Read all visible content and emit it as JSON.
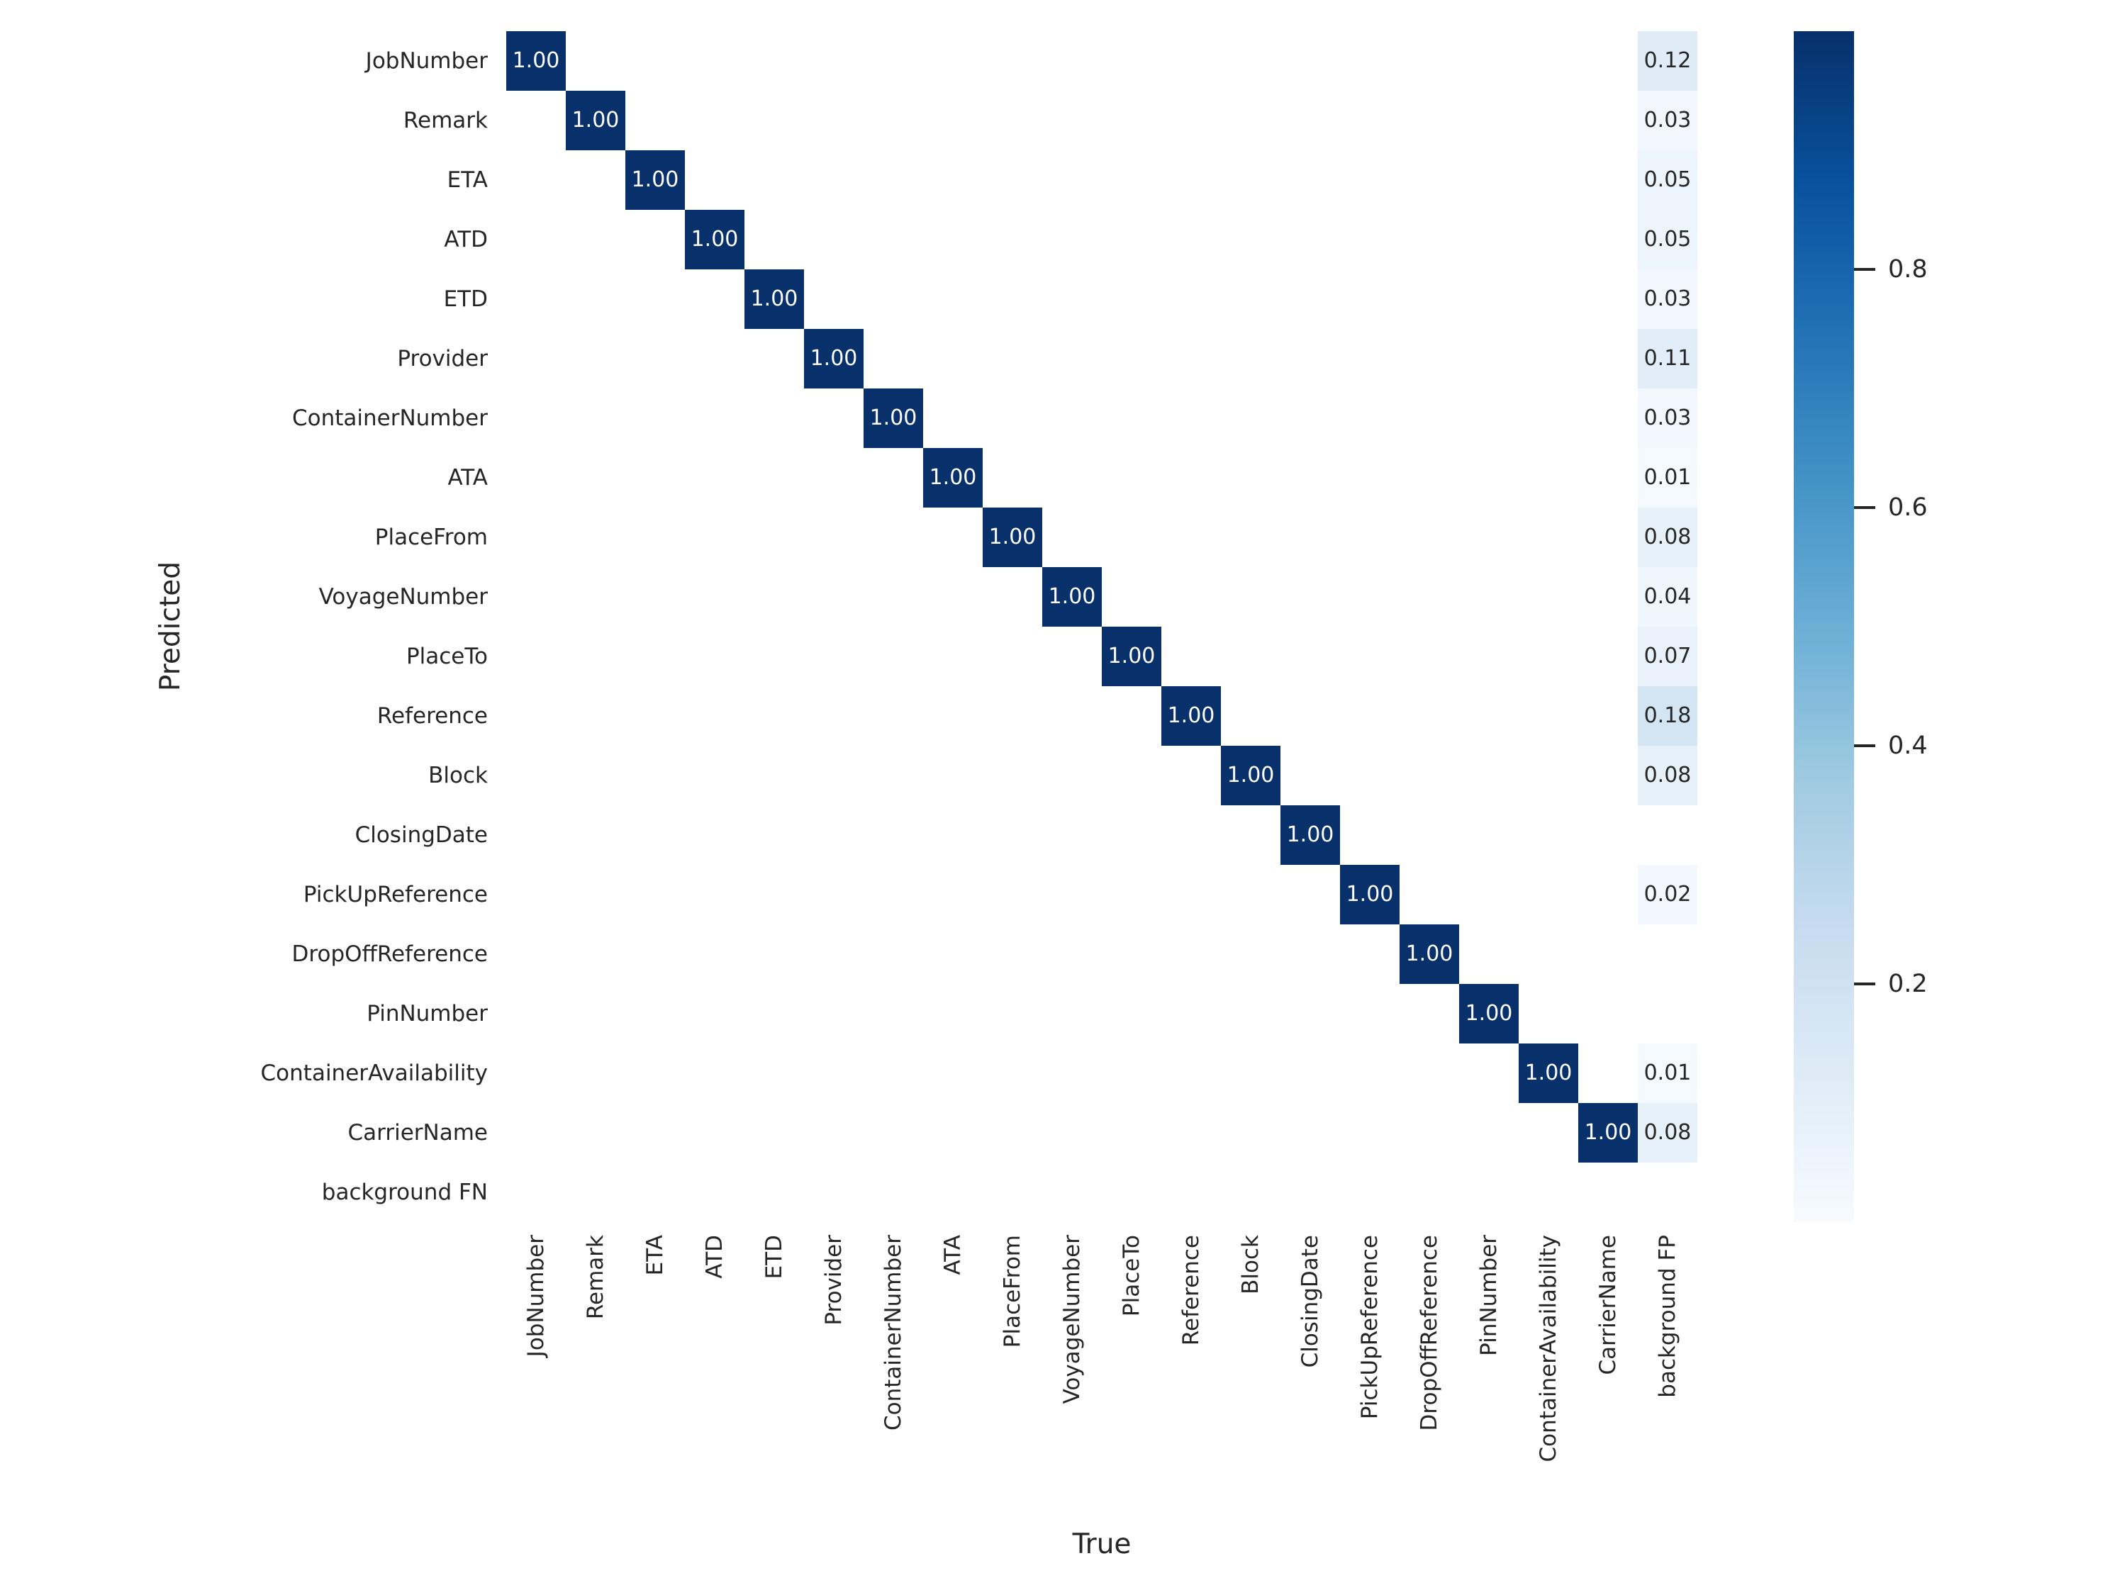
{
  "chart_data": {
    "type": "heatmap",
    "title": "",
    "xlabel": "True",
    "ylabel": "Predicted",
    "x_categories": [
      "JobNumber",
      "Remark",
      "ETA",
      "ATD",
      "ETD",
      "Provider",
      "ContainerNumber",
      "ATA",
      "PlaceFrom",
      "VoyageNumber",
      "PlaceTo",
      "Reference",
      "Block",
      "ClosingDate",
      "PickUpReference",
      "DropOffReference",
      "PinNumber",
      "ContainerAvailability",
      "CarrierName",
      "background FP"
    ],
    "y_categories": [
      "JobNumber",
      "Remark",
      "ETA",
      "ATD",
      "ETD",
      "Provider",
      "ContainerNumber",
      "ATA",
      "PlaceFrom",
      "VoyageNumber",
      "PlaceTo",
      "Reference",
      "Block",
      "ClosingDate",
      "PickUpReference",
      "DropOffReference",
      "PinNumber",
      "ContainerAvailability",
      "CarrierName",
      "background FN"
    ],
    "vmin": 0,
    "vmax": 1,
    "colormap": "Blues",
    "colormap_anchors": [
      "#f7fbff",
      "#deebf7",
      "#c6dbef",
      "#9ecae1",
      "#6baed6",
      "#4292c6",
      "#2171b5",
      "#08519c",
      "#08306b"
    ],
    "colorbar_ticks": [
      "0.8",
      "0.6",
      "0.4",
      "0.2"
    ],
    "annotation_color_light": "#ffffff",
    "annotation_color_dark": "#262626",
    "cells": [
      {
        "row": "JobNumber",
        "col": "JobNumber",
        "value": 1.0,
        "label": "1.00"
      },
      {
        "row": "Remark",
        "col": "Remark",
        "value": 1.0,
        "label": "1.00"
      },
      {
        "row": "ETA",
        "col": "ETA",
        "value": 1.0,
        "label": "1.00"
      },
      {
        "row": "ATD",
        "col": "ATD",
        "value": 1.0,
        "label": "1.00"
      },
      {
        "row": "ETD",
        "col": "ETD",
        "value": 1.0,
        "label": "1.00"
      },
      {
        "row": "Provider",
        "col": "Provider",
        "value": 1.0,
        "label": "1.00"
      },
      {
        "row": "ContainerNumber",
        "col": "ContainerNumber",
        "value": 1.0,
        "label": "1.00"
      },
      {
        "row": "ATA",
        "col": "ATA",
        "value": 1.0,
        "label": "1.00"
      },
      {
        "row": "PlaceFrom",
        "col": "PlaceFrom",
        "value": 1.0,
        "label": "1.00"
      },
      {
        "row": "VoyageNumber",
        "col": "VoyageNumber",
        "value": 1.0,
        "label": "1.00"
      },
      {
        "row": "PlaceTo",
        "col": "PlaceTo",
        "value": 1.0,
        "label": "1.00"
      },
      {
        "row": "Reference",
        "col": "Reference",
        "value": 1.0,
        "label": "1.00"
      },
      {
        "row": "Block",
        "col": "Block",
        "value": 1.0,
        "label": "1.00"
      },
      {
        "row": "ClosingDate",
        "col": "ClosingDate",
        "value": 1.0,
        "label": "1.00"
      },
      {
        "row": "PickUpReference",
        "col": "PickUpReference",
        "value": 1.0,
        "label": "1.00"
      },
      {
        "row": "DropOffReference",
        "col": "DropOffReference",
        "value": 1.0,
        "label": "1.00"
      },
      {
        "row": "PinNumber",
        "col": "PinNumber",
        "value": 1.0,
        "label": "1.00"
      },
      {
        "row": "ContainerAvailability",
        "col": "ContainerAvailability",
        "value": 1.0,
        "label": "1.00"
      },
      {
        "row": "CarrierName",
        "col": "CarrierName",
        "value": 1.0,
        "label": "1.00"
      },
      {
        "row": "JobNumber",
        "col": "background FP",
        "value": 0.12,
        "label": "0.12"
      },
      {
        "row": "Remark",
        "col": "background FP",
        "value": 0.03,
        "label": "0.03"
      },
      {
        "row": "ETA",
        "col": "background FP",
        "value": 0.05,
        "label": "0.05"
      },
      {
        "row": "ATD",
        "col": "background FP",
        "value": 0.05,
        "label": "0.05"
      },
      {
        "row": "ETD",
        "col": "background FP",
        "value": 0.03,
        "label": "0.03"
      },
      {
        "row": "Provider",
        "col": "background FP",
        "value": 0.11,
        "label": "0.11"
      },
      {
        "row": "ContainerNumber",
        "col": "background FP",
        "value": 0.03,
        "label": "0.03"
      },
      {
        "row": "ATA",
        "col": "background FP",
        "value": 0.01,
        "label": "0.01"
      },
      {
        "row": "PlaceFrom",
        "col": "background FP",
        "value": 0.08,
        "label": "0.08"
      },
      {
        "row": "VoyageNumber",
        "col": "background FP",
        "value": 0.04,
        "label": "0.04"
      },
      {
        "row": "PlaceTo",
        "col": "background FP",
        "value": 0.07,
        "label": "0.07"
      },
      {
        "row": "Reference",
        "col": "background FP",
        "value": 0.18,
        "label": "0.18"
      },
      {
        "row": "Block",
        "col": "background FP",
        "value": 0.08,
        "label": "0.08"
      },
      {
        "row": "PickUpReference",
        "col": "background FP",
        "value": 0.02,
        "label": "0.02"
      },
      {
        "row": "ContainerAvailability",
        "col": "background FP",
        "value": 0.01,
        "label": "0.01"
      },
      {
        "row": "CarrierName",
        "col": "background FP",
        "value": 0.08,
        "label": "0.08"
      }
    ]
  }
}
